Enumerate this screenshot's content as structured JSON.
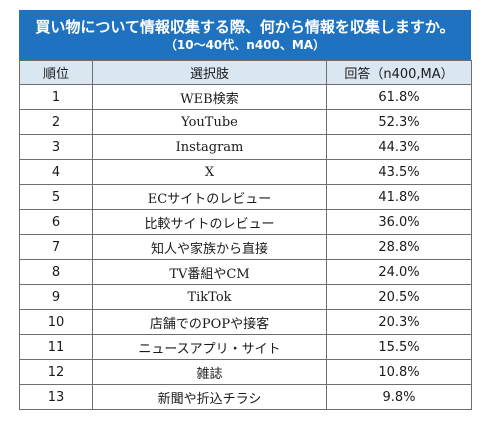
{
  "title": {
    "main": "買い物について情報収集する際、何から情報を収集しますか。",
    "sub": "（10～40代、n400、MA）"
  },
  "headers": {
    "rank": "順位",
    "choice": "選択肢",
    "answer": "回答（n400,MA）"
  },
  "colors": {
    "title_bg": "#1f72c0",
    "header_bg": "#dbe6f3",
    "border": "#6e6e6e"
  },
  "rows": [
    {
      "rank": "1",
      "choice": "WEB検索",
      "answer": "61.8%"
    },
    {
      "rank": "2",
      "choice": "YouTube",
      "answer": "52.3%"
    },
    {
      "rank": "3",
      "choice": "Instagram",
      "answer": "44.3%"
    },
    {
      "rank": "4",
      "choice": "X",
      "answer": "43.5%"
    },
    {
      "rank": "5",
      "choice": "ECサイトのレビュー",
      "answer": "41.8%"
    },
    {
      "rank": "6",
      "choice": "比較サイトのレビュー",
      "answer": "36.0%"
    },
    {
      "rank": "7",
      "choice": "知人や家族から直接",
      "answer": "28.8%"
    },
    {
      "rank": "8",
      "choice": "TV番組やCM",
      "answer": "24.0%"
    },
    {
      "rank": "9",
      "choice": "TikTok",
      "answer": "20.5%"
    },
    {
      "rank": "10",
      "choice": "店舗でのPOPや接客",
      "answer": "20.3%"
    },
    {
      "rank": "11",
      "choice": "ニュースアプリ・サイト",
      "answer": "15.5%"
    },
    {
      "rank": "12",
      "choice": "雑誌",
      "answer": "10.8%"
    },
    {
      "rank": "13",
      "choice": "新聞や折込チラシ",
      "answer": "9.8%"
    }
  ]
}
